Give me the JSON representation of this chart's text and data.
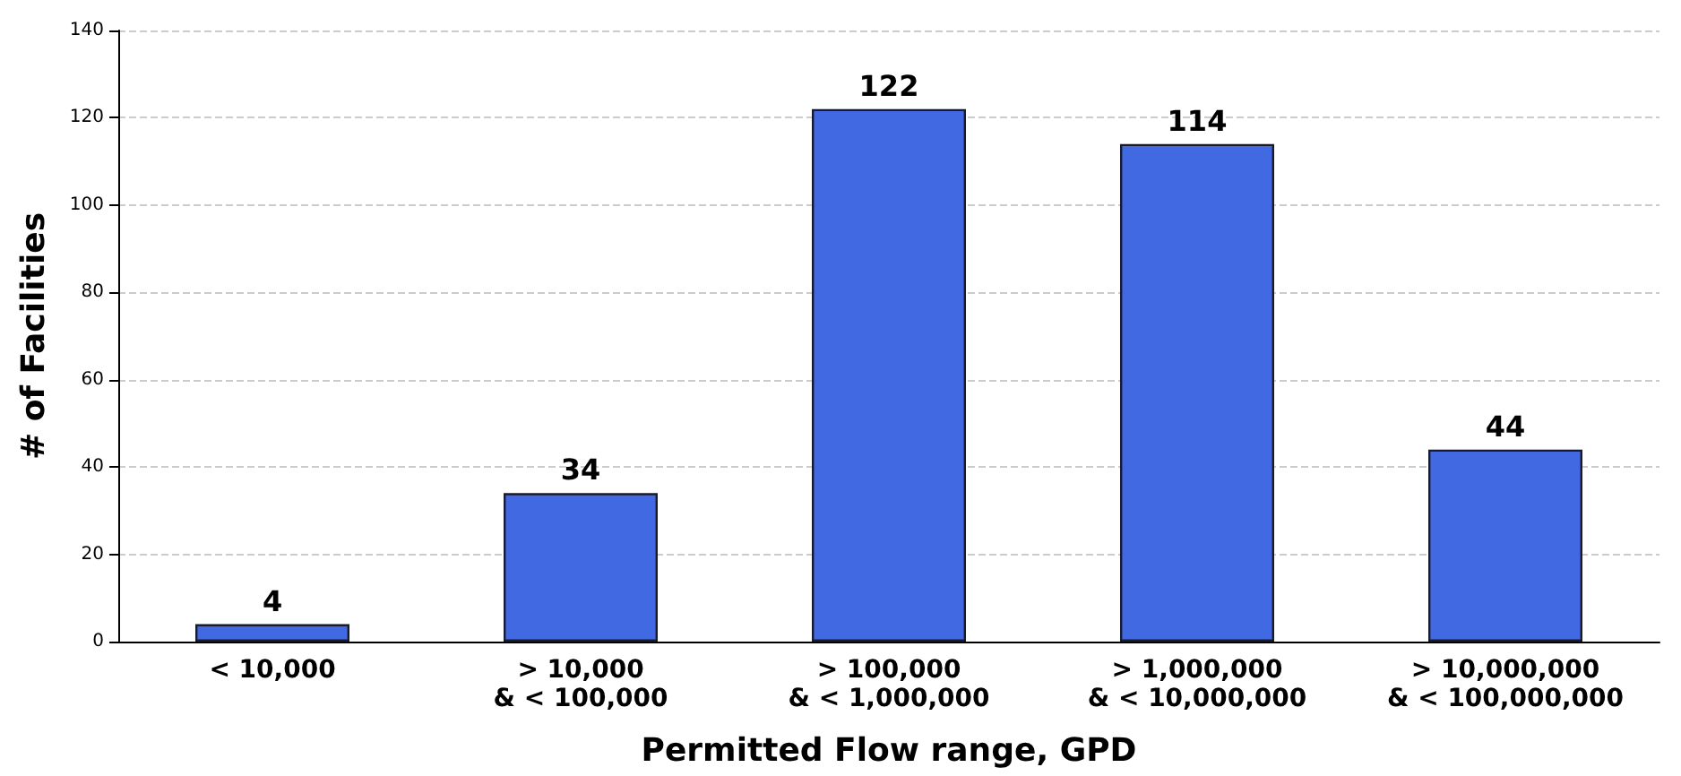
{
  "chart_data": {
    "type": "bar",
    "xlabel": "Permitted Flow range, GPD",
    "ylabel": "# of Facilities",
    "categories": [
      "< 10,000",
      "> 10,000\n& < 100,000",
      "> 100,000\n& < 1,000,000",
      "> 1,000,000\n& < 10,000,000",
      "> 10,000,000\n& < 100,000,000"
    ],
    "values": [
      4,
      34,
      122,
      114,
      44
    ],
    "color": "#4169e1",
    "ylim": [
      0,
      140
    ],
    "yticks": [
      0,
      20,
      40,
      60,
      80,
      100,
      120,
      140
    ],
    "grid": "y",
    "data_labels": true
  }
}
